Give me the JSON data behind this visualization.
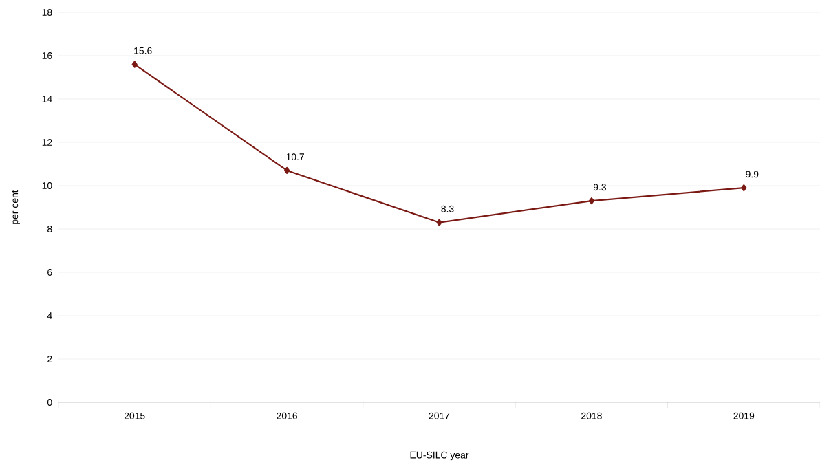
{
  "chart_data": {
    "type": "line",
    "xlabel": "EU-SILC year",
    "ylabel": "per cent",
    "categories": [
      "2015",
      "2016",
      "2017",
      "2018",
      "2019"
    ],
    "values": [
      15.6,
      10.7,
      8.3,
      9.3,
      9.9
    ],
    "color": "#7b1a14",
    "marker": "diamond",
    "line_style": "solid",
    "ylim": [
      0,
      18
    ],
    "yticks": [
      0,
      2,
      4,
      6,
      8,
      10,
      12,
      14,
      16,
      18
    ],
    "grid": "y",
    "data_labels": true
  }
}
